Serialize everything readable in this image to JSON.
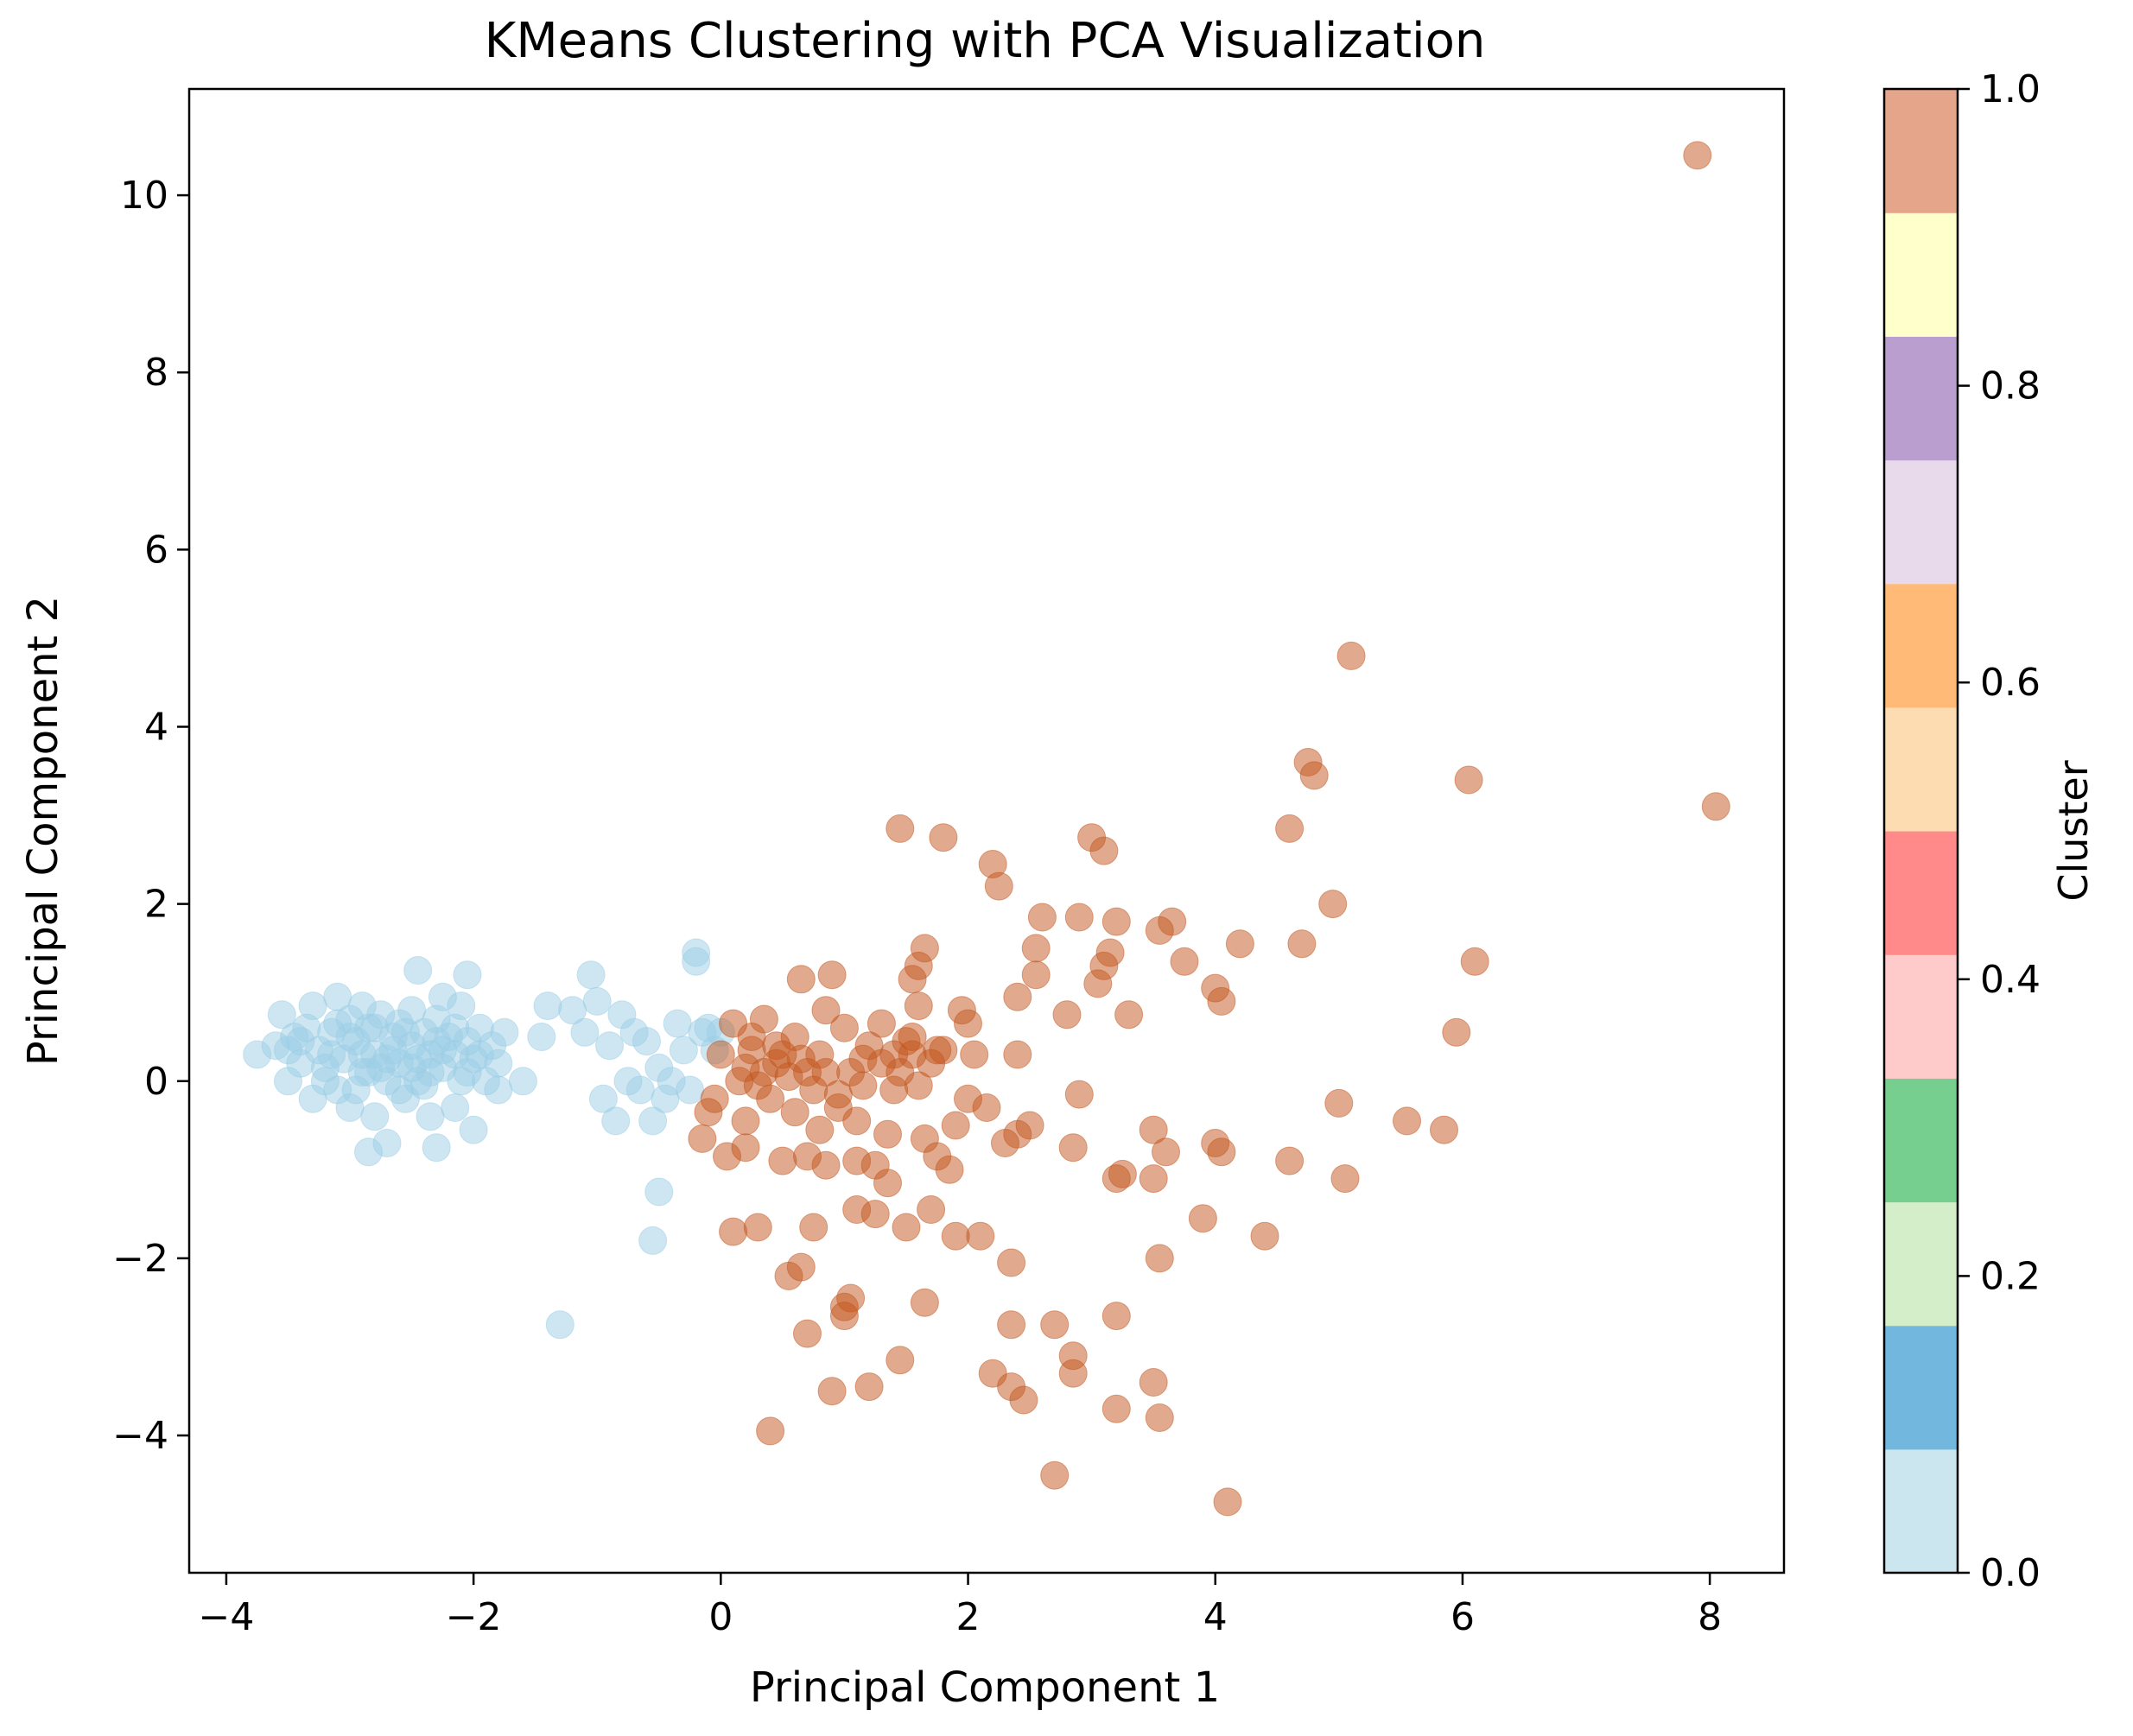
{
  "chart_data": {
    "type": "scatter",
    "title": "KMeans Clustering with PCA Visualization",
    "xlabel": "Principal Component 1",
    "ylabel": "Principal Component 2",
    "xlim": [
      -4.3,
      8.6
    ],
    "ylim": [
      -5.55,
      11.2
    ],
    "xticks": [
      {
        "value": -4,
        "label": "−4"
      },
      {
        "value": -2,
        "label": "−2"
      },
      {
        "value": 0,
        "label": "0"
      },
      {
        "value": 2,
        "label": "2"
      },
      {
        "value": 4,
        "label": "4"
      },
      {
        "value": 6,
        "label": "6"
      },
      {
        "value": 8,
        "label": "8"
      }
    ],
    "yticks": [
      {
        "value": -4,
        "label": "−4"
      },
      {
        "value": -2,
        "label": "−2"
      },
      {
        "value": 0,
        "label": "0"
      },
      {
        "value": 2,
        "label": "2"
      },
      {
        "value": 4,
        "label": "4"
      },
      {
        "value": 6,
        "label": "6"
      },
      {
        "value": 8,
        "label": "8"
      },
      {
        "value": 10,
        "label": "10"
      }
    ],
    "grid": false,
    "marker_alpha": 0.5,
    "series": [
      {
        "name": "Cluster 0",
        "cluster_value": 0.0,
        "color": "#9ccde6",
        "points": [
          [
            -3.75,
            0.3
          ],
          [
            -3.6,
            0.4
          ],
          [
            -3.55,
            0.75
          ],
          [
            -3.5,
            0.0
          ],
          [
            -3.45,
            0.5
          ],
          [
            -3.4,
            0.2
          ],
          [
            -3.35,
            0.6
          ],
          [
            -3.3,
            0.85
          ],
          [
            -3.3,
            -0.2
          ],
          [
            -3.25,
            0.35
          ],
          [
            -3.2,
            0.0
          ],
          [
            -3.15,
            0.55
          ],
          [
            -3.1,
            0.95
          ],
          [
            -3.1,
            -0.1
          ],
          [
            -3.05,
            0.25
          ],
          [
            -3.0,
            0.7
          ],
          [
            -3.0,
            -0.3
          ],
          [
            -2.95,
            0.45
          ],
          [
            -2.9,
            0.1
          ],
          [
            -2.9,
            0.85
          ],
          [
            -2.85,
            -0.8
          ],
          [
            -2.85,
            0.6
          ],
          [
            -2.8,
            0.3
          ],
          [
            -2.8,
            -0.4
          ],
          [
            -2.75,
            0.75
          ],
          [
            -2.7,
            0.0
          ],
          [
            -2.7,
            -0.7
          ],
          [
            -2.65,
            0.5
          ],
          [
            -2.6,
            0.2
          ],
          [
            -2.6,
            0.65
          ],
          [
            -2.55,
            -0.2
          ],
          [
            -2.5,
            0.4
          ],
          [
            -2.5,
            0.8
          ],
          [
            -2.45,
            1.25
          ],
          [
            -2.45,
            0.0
          ],
          [
            -2.4,
            0.55
          ],
          [
            -2.35,
            -0.4
          ],
          [
            -2.35,
            0.3
          ],
          [
            -2.3,
            0.7
          ],
          [
            -2.3,
            -0.75
          ],
          [
            -2.25,
            0.15
          ],
          [
            -2.25,
            0.95
          ],
          [
            -2.2,
            0.5
          ],
          [
            -2.15,
            -0.3
          ],
          [
            -2.15,
            0.3
          ],
          [
            -2.1,
            0.0
          ],
          [
            -2.1,
            0.85
          ],
          [
            -2.05,
            0.45
          ],
          [
            -2.05,
            1.2
          ],
          [
            -2.0,
            -0.55
          ],
          [
            -2.0,
            0.25
          ],
          [
            -1.95,
            0.6
          ],
          [
            -1.9,
            0.0
          ],
          [
            -1.85,
            0.4
          ],
          [
            -1.8,
            -0.1
          ],
          [
            -1.8,
            0.2
          ],
          [
            -1.75,
            0.55
          ],
          [
            -1.6,
            0.0
          ],
          [
            -1.45,
            0.5
          ],
          [
            -1.4,
            0.85
          ],
          [
            -1.3,
            -2.75
          ],
          [
            -1.2,
            0.8
          ],
          [
            -1.1,
            0.55
          ],
          [
            -1.05,
            1.2
          ],
          [
            -1.0,
            0.9
          ],
          [
            -0.95,
            -0.2
          ],
          [
            -0.9,
            0.4
          ],
          [
            -0.85,
            -0.45
          ],
          [
            -0.8,
            0.75
          ],
          [
            -0.75,
            0.0
          ],
          [
            -0.7,
            0.55
          ],
          [
            -0.65,
            -0.1
          ],
          [
            -0.6,
            0.45
          ],
          [
            -0.55,
            -0.45
          ],
          [
            -0.55,
            -1.8
          ],
          [
            -0.5,
            -1.25
          ],
          [
            -0.5,
            0.15
          ],
          [
            -0.45,
            -0.2
          ],
          [
            -0.4,
            0.0
          ],
          [
            -0.35,
            0.65
          ],
          [
            -0.3,
            0.35
          ],
          [
            -0.25,
            -0.1
          ],
          [
            -0.2,
            1.45
          ],
          [
            -0.2,
            1.35
          ],
          [
            -0.15,
            0.55
          ],
          [
            -0.1,
            0.6
          ],
          [
            -0.05,
            0.35
          ],
          [
            0.0,
            0.55
          ],
          [
            -3.4,
            0.45
          ],
          [
            -3.2,
            0.15
          ],
          [
            -3.0,
            0.5
          ],
          [
            -2.9,
            0.3
          ],
          [
            -2.75,
            0.15
          ],
          [
            -2.65,
            0.35
          ],
          [
            -2.55,
            0.55
          ],
          [
            -2.45,
            0.25
          ],
          [
            -2.35,
            0.1
          ],
          [
            -2.25,
            0.35
          ],
          [
            -2.15,
            0.6
          ],
          [
            -3.15,
            0.3
          ],
          [
            -2.8,
            0.6
          ],
          [
            -2.6,
            -0.1
          ],
          [
            -2.4,
            -0.05
          ],
          [
            -2.95,
            -0.1
          ],
          [
            -3.5,
            0.35
          ],
          [
            -2.05,
            0.1
          ],
          [
            -1.95,
            0.3
          ],
          [
            -2.7,
            0.25
          ],
          [
            -2.5,
            0.15
          ],
          [
            -2.3,
            0.45
          ],
          [
            -3.1,
            0.65
          ],
          [
            -2.85,
            0.1
          ]
        ]
      },
      {
        "name": "Cluster 1",
        "cluster_value": 1.0,
        "color": "#c4551e",
        "points": [
          [
            7.9,
            10.45
          ],
          [
            8.05,
            3.1
          ],
          [
            5.1,
            4.8
          ],
          [
            4.75,
            3.6
          ],
          [
            4.8,
            3.45
          ],
          [
            6.05,
            3.4
          ],
          [
            4.6,
            2.85
          ],
          [
            4.95,
            2.0
          ],
          [
            4.7,
            1.55
          ],
          [
            6.1,
            1.35
          ],
          [
            5.95,
            0.55
          ],
          [
            4.0,
            1.05
          ],
          [
            4.05,
            0.9
          ],
          [
            4.2,
            1.55
          ],
          [
            5.0,
            -0.25
          ],
          [
            5.05,
            -1.1
          ],
          [
            5.55,
            -0.45
          ],
          [
            5.85,
            -0.55
          ],
          [
            4.6,
            -0.9
          ],
          [
            4.4,
            -1.75
          ],
          [
            4.0,
            -0.7
          ],
          [
            4.05,
            -0.8
          ],
          [
            3.9,
            -1.55
          ],
          [
            4.1,
            -4.75
          ],
          [
            3.55,
            1.7
          ],
          [
            3.65,
            1.8
          ],
          [
            3.75,
            1.35
          ],
          [
            3.5,
            -0.55
          ],
          [
            3.6,
            -0.8
          ],
          [
            3.5,
            -1.1
          ],
          [
            3.55,
            -2.0
          ],
          [
            3.5,
            -3.4
          ],
          [
            3.55,
            -3.8
          ],
          [
            3.2,
            1.8
          ],
          [
            3.15,
            1.45
          ],
          [
            3.1,
            1.3
          ],
          [
            3.05,
            1.1
          ],
          [
            3.0,
            2.75
          ],
          [
            3.1,
            2.6
          ],
          [
            3.25,
            -1.05
          ],
          [
            3.2,
            -1.1
          ],
          [
            3.2,
            -2.65
          ],
          [
            3.2,
            -3.7
          ],
          [
            3.3,
            0.75
          ],
          [
            2.9,
            1.85
          ],
          [
            2.9,
            -0.15
          ],
          [
            2.85,
            -0.75
          ],
          [
            2.85,
            -3.1
          ],
          [
            2.85,
            -3.3
          ],
          [
            2.8,
            0.75
          ],
          [
            2.7,
            -2.75
          ],
          [
            2.7,
            -4.45
          ],
          [
            2.6,
            1.85
          ],
          [
            2.55,
            1.5
          ],
          [
            2.55,
            1.2
          ],
          [
            2.5,
            -0.5
          ],
          [
            2.4,
            0.95
          ],
          [
            2.4,
            0.3
          ],
          [
            2.4,
            -0.6
          ],
          [
            2.35,
            -2.05
          ],
          [
            2.35,
            -2.75
          ],
          [
            2.35,
            -3.45
          ],
          [
            2.45,
            -3.6
          ],
          [
            2.3,
            -0.7
          ],
          [
            2.25,
            2.2
          ],
          [
            2.2,
            2.45
          ],
          [
            2.2,
            -3.3
          ],
          [
            2.15,
            -0.3
          ],
          [
            2.05,
            0.3
          ],
          [
            2.0,
            0.65
          ],
          [
            2.0,
            -0.2
          ],
          [
            2.1,
            -1.75
          ],
          [
            1.95,
            0.8
          ],
          [
            1.9,
            -0.5
          ],
          [
            1.9,
            -1.75
          ],
          [
            1.85,
            -1.0
          ],
          [
            1.8,
            2.75
          ],
          [
            1.75,
            0.35
          ],
          [
            1.75,
            -0.85
          ],
          [
            1.7,
            -1.45
          ],
          [
            1.65,
            1.5
          ],
          [
            1.6,
            1.3
          ],
          [
            1.55,
            1.15
          ],
          [
            1.6,
            0.85
          ],
          [
            1.6,
            -0.05
          ],
          [
            1.65,
            -0.65
          ],
          [
            1.65,
            -2.5
          ],
          [
            1.55,
            0.3
          ],
          [
            1.5,
            0.45
          ],
          [
            1.5,
            -1.65
          ],
          [
            1.45,
            2.85
          ],
          [
            1.45,
            -3.15
          ],
          [
            1.4,
            0.3
          ],
          [
            1.35,
            -0.6
          ],
          [
            1.35,
            -1.15
          ],
          [
            1.3,
            0.65
          ],
          [
            1.25,
            -1.5
          ],
          [
            1.2,
            -3.45
          ],
          [
            1.15,
            0.25
          ],
          [
            1.1,
            -0.45
          ],
          [
            1.1,
            -0.9
          ],
          [
            1.1,
            -1.45
          ],
          [
            1.05,
            -2.45
          ],
          [
            1.0,
            0.6
          ],
          [
            1.0,
            -2.55
          ],
          [
            1.0,
            -2.65
          ],
          [
            0.95,
            -0.15
          ],
          [
            0.9,
            1.2
          ],
          [
            0.85,
            0.8
          ],
          [
            0.85,
            -0.95
          ],
          [
            0.9,
            -3.5
          ],
          [
            0.8,
            0.3
          ],
          [
            0.8,
            -0.55
          ],
          [
            0.75,
            -1.65
          ],
          [
            0.7,
            -0.85
          ],
          [
            0.7,
            -2.85
          ],
          [
            0.65,
            1.15
          ],
          [
            0.65,
            -2.1
          ],
          [
            0.6,
            0.5
          ],
          [
            0.6,
            -0.35
          ],
          [
            0.55,
            -2.2
          ],
          [
            0.5,
            -0.9
          ],
          [
            0.45,
            0.2
          ],
          [
            0.4,
            -3.95
          ],
          [
            0.35,
            0.7
          ],
          [
            0.3,
            -0.05
          ],
          [
            0.3,
            -1.65
          ],
          [
            0.25,
            0.35
          ],
          [
            0.2,
            -0.45
          ],
          [
            0.2,
            -0.75
          ],
          [
            0.15,
            0.0
          ],
          [
            0.1,
            0.65
          ],
          [
            0.1,
            -1.7
          ],
          [
            0.05,
            -0.85
          ],
          [
            0.0,
            0.3
          ],
          [
            -0.05,
            -0.2
          ],
          [
            -0.1,
            -0.35
          ],
          [
            -0.15,
            -0.65
          ],
          [
            0.2,
            0.15
          ],
          [
            0.35,
            0.1
          ],
          [
            0.45,
            0.4
          ],
          [
            0.55,
            0.05
          ],
          [
            0.65,
            0.25
          ],
          [
            0.7,
            0.1
          ],
          [
            0.75,
            -0.1
          ],
          [
            0.85,
            0.1
          ],
          [
            0.95,
            -0.3
          ],
          [
            1.05,
            0.1
          ],
          [
            1.15,
            -0.05
          ],
          [
            1.2,
            0.4
          ],
          [
            1.3,
            0.2
          ],
          [
            1.45,
            0.1
          ],
          [
            1.55,
            0.5
          ],
          [
            1.7,
            0.2
          ],
          [
            1.8,
            0.35
          ],
          [
            1.25,
            -0.95
          ],
          [
            0.5,
            0.3
          ],
          [
            0.4,
            -0.2
          ],
          [
            1.4,
            -0.1
          ],
          [
            0.25,
            0.5
          ]
        ]
      }
    ],
    "colorbar": {
      "label": "Cluster",
      "colormap": "Paired",
      "range": [
        0.0,
        1.0
      ],
      "colors": [
        "#cbe6ef",
        "#72b7de",
        "#d3eec8",
        "#76cf8e",
        "#fecaca",
        "#ff8a89",
        "#fedcb2",
        "#ffba78",
        "#e8d9eb",
        "#ba9ecf",
        "#ffffcb",
        "#e5a58a"
      ],
      "ticks": [
        {
          "value": 0.0,
          "label": "0.0"
        },
        {
          "value": 0.2,
          "label": "0.2"
        },
        {
          "value": 0.4,
          "label": "0.4"
        },
        {
          "value": 0.6,
          "label": "0.6"
        },
        {
          "value": 0.8,
          "label": "0.8"
        },
        {
          "value": 1.0,
          "label": "1.0"
        }
      ]
    }
  }
}
